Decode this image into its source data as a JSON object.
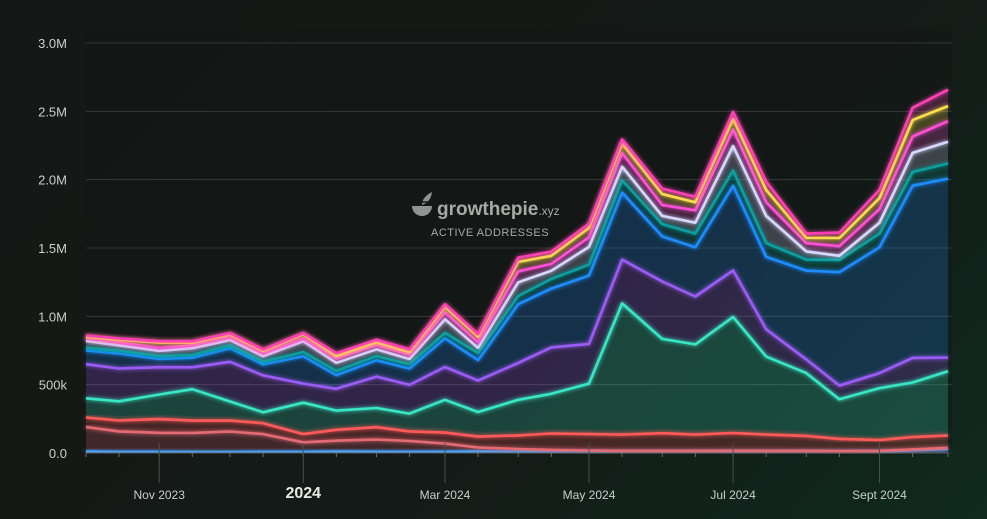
{
  "watermark": {
    "brand_prefix": "grow",
    "brand_mid": "thepie",
    "brand_suffix": ".xyz",
    "subtitle": "ACTIVE ADDRESSES",
    "icon": "pie-leaf-icon"
  },
  "chart_data": {
    "type": "area",
    "stacked": true,
    "ylim": [
      0,
      3000000
    ],
    "y_ticks": [
      0,
      500000,
      1000000,
      1500000,
      2000000,
      2500000,
      3000000
    ],
    "y_tick_labels": [
      "0.0",
      "500k",
      "1.0M",
      "1.5M",
      "2.0M",
      "2.5M",
      "3.0M"
    ],
    "x_ticks": [
      {
        "date": "2023-11-01",
        "label": "Nov 2023",
        "bold": false
      },
      {
        "date": "2024-01-01",
        "label": "2024",
        "bold": true
      },
      {
        "date": "2024-03-01",
        "label": "Mar 2024",
        "bold": false
      },
      {
        "date": "2024-05-01",
        "label": "May 2024",
        "bold": false
      },
      {
        "date": "2024-07-01",
        "label": "Jul 2024",
        "bold": false
      },
      {
        "date": "2024-09-01",
        "label": "Sept 2024",
        "bold": false
      }
    ],
    "x": [
      "2023-10-01",
      "2023-10-15",
      "2023-11-01",
      "2023-11-15",
      "2023-12-01",
      "2023-12-15",
      "2024-01-01",
      "2024-01-15",
      "2024-02-01",
      "2024-02-15",
      "2024-03-01",
      "2024-03-15",
      "2024-04-01",
      "2024-04-15",
      "2024-05-01",
      "2024-05-15",
      "2024-06-01",
      "2024-06-15",
      "2024-07-01",
      "2024-07-15",
      "2024-08-01",
      "2024-08-15",
      "2024-09-01",
      "2024-09-15",
      "2024-09-30"
    ],
    "series": [
      {
        "color": "#4aa3ff",
        "values": [
          10000,
          8000,
          8000,
          7000,
          7000,
          8000,
          8000,
          10000,
          9000,
          8000,
          9000,
          10000,
          9000,
          8000,
          8000,
          7000,
          7000,
          8000,
          9000,
          9000,
          9000,
          8000,
          10000,
          20000,
          30000
        ]
      },
      {
        "color": "#e46a73",
        "values": [
          180000,
          150000,
          140000,
          140000,
          150000,
          130000,
          70000,
          80000,
          90000,
          80000,
          60000,
          30000,
          20000,
          15000,
          10000,
          8000,
          8000,
          7000,
          7000,
          6000,
          6000,
          5000,
          5000,
          6000,
          8000
        ]
      },
      {
        "color": "#ff5a5a",
        "values": [
          70000,
          80000,
          100000,
          90000,
          80000,
          80000,
          60000,
          80000,
          90000,
          70000,
          80000,
          80000,
          100000,
          120000,
          120000,
          120000,
          130000,
          120000,
          130000,
          120000,
          110000,
          90000,
          80000,
          90000,
          90000
        ]
      },
      {
        "color": "#39e6c4",
        "values": [
          140000,
          140000,
          180000,
          230000,
          140000,
          80000,
          230000,
          140000,
          140000,
          130000,
          240000,
          180000,
          260000,
          290000,
          370000,
          960000,
          690000,
          660000,
          850000,
          570000,
          460000,
          290000,
          380000,
          400000,
          470000
        ]
      },
      {
        "color": "#9b5cf6",
        "values": [
          250000,
          240000,
          200000,
          160000,
          290000,
          270000,
          140000,
          160000,
          230000,
          210000,
          240000,
          230000,
          270000,
          340000,
          290000,
          320000,
          420000,
          350000,
          340000,
          200000,
          100000,
          100000,
          110000,
          180000,
          100000
        ]
      },
      {
        "color": "#1e8cff",
        "values": [
          100000,
          110000,
          60000,
          70000,
          100000,
          80000,
          200000,
          100000,
          120000,
          120000,
          210000,
          150000,
          430000,
          430000,
          500000,
          490000,
          330000,
          360000,
          620000,
          530000,
          650000,
          830000,
          920000,
          1260000,
          1310000
        ]
      },
      {
        "color": "#0e9fa0",
        "values": [
          20000,
          20000,
          20000,
          20000,
          20000,
          20000,
          30000,
          30000,
          30000,
          30000,
          40000,
          50000,
          60000,
          70000,
          80000,
          90000,
          90000,
          100000,
          110000,
          100000,
          80000,
          90000,
          100000,
          100000,
          110000
        ]
      },
      {
        "color": "#d6d8ff",
        "values": [
          50000,
          40000,
          40000,
          50000,
          40000,
          40000,
          80000,
          60000,
          50000,
          40000,
          100000,
          40000,
          100000,
          60000,
          130000,
          100000,
          60000,
          80000,
          180000,
          200000,
          60000,
          30000,
          80000,
          140000,
          160000
        ]
      },
      {
        "color": "#ff4fd8",
        "values": [
          20000,
          20000,
          20000,
          20000,
          20000,
          20000,
          20000,
          30000,
          30000,
          30000,
          50000,
          40000,
          80000,
          50000,
          70000,
          100000,
          80000,
          90000,
          120000,
          100000,
          60000,
          70000,
          100000,
          120000,
          150000
        ]
      },
      {
        "color": "#ffe14d",
        "values": [
          10000,
          20000,
          40000,
          20000,
          20000,
          20000,
          30000,
          20000,
          20000,
          20000,
          40000,
          40000,
          70000,
          60000,
          70000,
          70000,
          80000,
          60000,
          80000,
          90000,
          40000,
          60000,
          80000,
          120000,
          110000
        ]
      },
      {
        "color": "#ff3fb4",
        "values": [
          10000,
          10000,
          10000,
          10000,
          10000,
          10000,
          10000,
          20000,
          20000,
          20000,
          20000,
          20000,
          30000,
          30000,
          30000,
          30000,
          40000,
          40000,
          50000,
          60000,
          30000,
          40000,
          60000,
          90000,
          120000
        ]
      }
    ]
  }
}
